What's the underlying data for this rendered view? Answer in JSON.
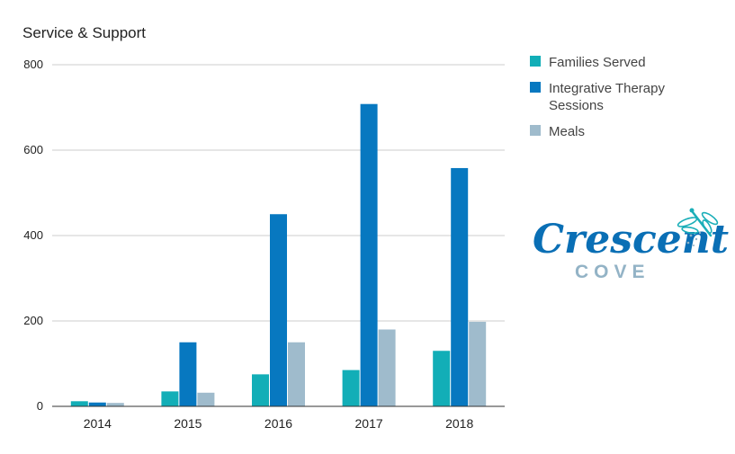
{
  "chart_data": {
    "type": "bar",
    "title": "Service & Support",
    "categories": [
      "2014",
      "2015",
      "2016",
      "2017",
      "2018"
    ],
    "series": [
      {
        "name": "Families Served",
        "values": [
          12,
          35,
          75,
          85,
          130
        ],
        "color": "#12aeb7"
      },
      {
        "name": "Integrative Therapy Sessions",
        "values": [
          9,
          150,
          450,
          708,
          558
        ],
        "color": "#0778c0"
      },
      {
        "name": "Meals",
        "values": [
          8,
          32,
          150,
          180,
          198
        ],
        "color": "#9fbbcc"
      }
    ],
    "yticks": [
      0,
      200,
      400,
      600,
      800
    ],
    "ylim": [
      0,
      800
    ],
    "grid": true,
    "legend_position": "right"
  },
  "logo": {
    "main_text": "Crescent",
    "sub_text": "COVE",
    "main_color": "#0a6fb5",
    "sub_color": "#93b3c6",
    "accent_color": "#1aaeb8",
    "emblem": "dragonfly-icon"
  }
}
